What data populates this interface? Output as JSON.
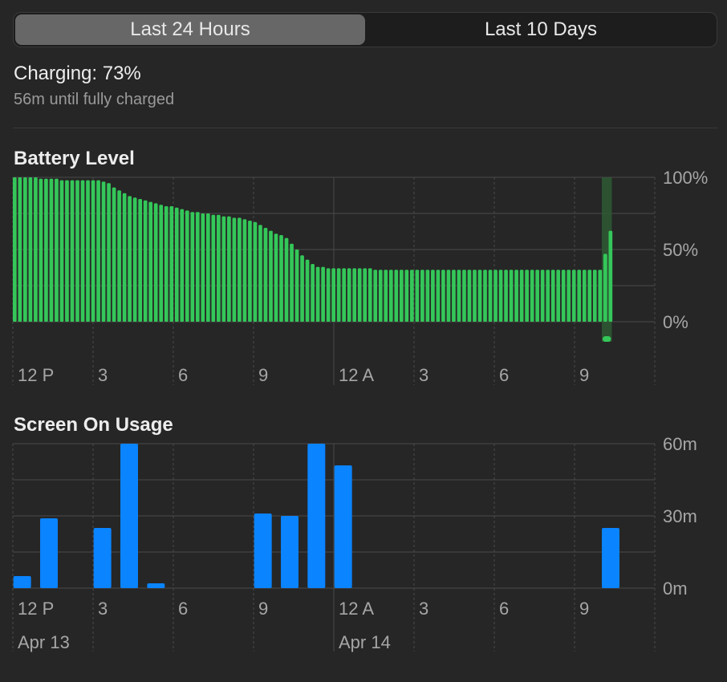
{
  "tabs": [
    {
      "label": "Last 24 Hours",
      "selected": true
    },
    {
      "label": "Last 10 Days",
      "selected": false
    }
  ],
  "status": {
    "title": "Charging: 73%",
    "subtitle": "56m until fully charged"
  },
  "battery": {
    "title": "Battery Level"
  },
  "screen": {
    "title": "Screen On Usage"
  },
  "colors": {
    "background": "#262626",
    "battery_bar": "#34c759",
    "charging_bar": "#34c759",
    "usage_bar": "#0a84ff",
    "grid": "#4a4a4a",
    "label": "#a6a6a6"
  },
  "chart_data": [
    {
      "type": "bar",
      "title": "Battery Level",
      "x_tick_labels": [
        "12 P",
        "3",
        "6",
        "9",
        "12 A",
        "3",
        "6",
        "9"
      ],
      "y_tick_labels": [
        "100%",
        "50%",
        "0%"
      ],
      "ylim": [
        0,
        100
      ],
      "grid": true,
      "series": [
        {
          "values": [
            100,
            100,
            100,
            100,
            100,
            99,
            99,
            99,
            99,
            98,
            98,
            98,
            98,
            98,
            98,
            98,
            98,
            97,
            96,
            93,
            91,
            89,
            87,
            86,
            85,
            84,
            83,
            82,
            81,
            80,
            80,
            79,
            78,
            77,
            76,
            76,
            75,
            75,
            74,
            74,
            73,
            73,
            72,
            72,
            71,
            70,
            69,
            67,
            65,
            63,
            61,
            60,
            58,
            54,
            50,
            46,
            43,
            40,
            38,
            38,
            37,
            37,
            37,
            37,
            37,
            37,
            37,
            37,
            37,
            36,
            36,
            36,
            36,
            36,
            36,
            36,
            36,
            36,
            36,
            36,
            36,
            36,
            36,
            36,
            36,
            36,
            36,
            36,
            36,
            36,
            36,
            36,
            36,
            36,
            36,
            36,
            36,
            36,
            36,
            36,
            36,
            36,
            36,
            36,
            36,
            36,
            36,
            36,
            36,
            36,
            36,
            36,
            36,
            47,
            63
          ]
        }
      ],
      "charging_indicator": true
    },
    {
      "type": "bar",
      "title": "Screen On Usage",
      "x_tick_labels": [
        "12 P",
        "3",
        "6",
        "9",
        "12 A",
        "3",
        "6",
        "9"
      ],
      "date_labels": [
        "Apr 13",
        "Apr 14"
      ],
      "y_tick_labels": [
        "60m",
        "30m",
        "0m"
      ],
      "ylim": [
        0,
        60
      ],
      "grid": true,
      "series": [
        {
          "values": [
            5,
            29,
            0,
            25,
            60,
            2,
            0,
            0,
            0,
            31,
            30,
            60,
            51,
            0,
            0,
            0,
            0,
            0,
            0,
            0,
            0,
            0,
            25,
            0
          ]
        }
      ]
    }
  ]
}
